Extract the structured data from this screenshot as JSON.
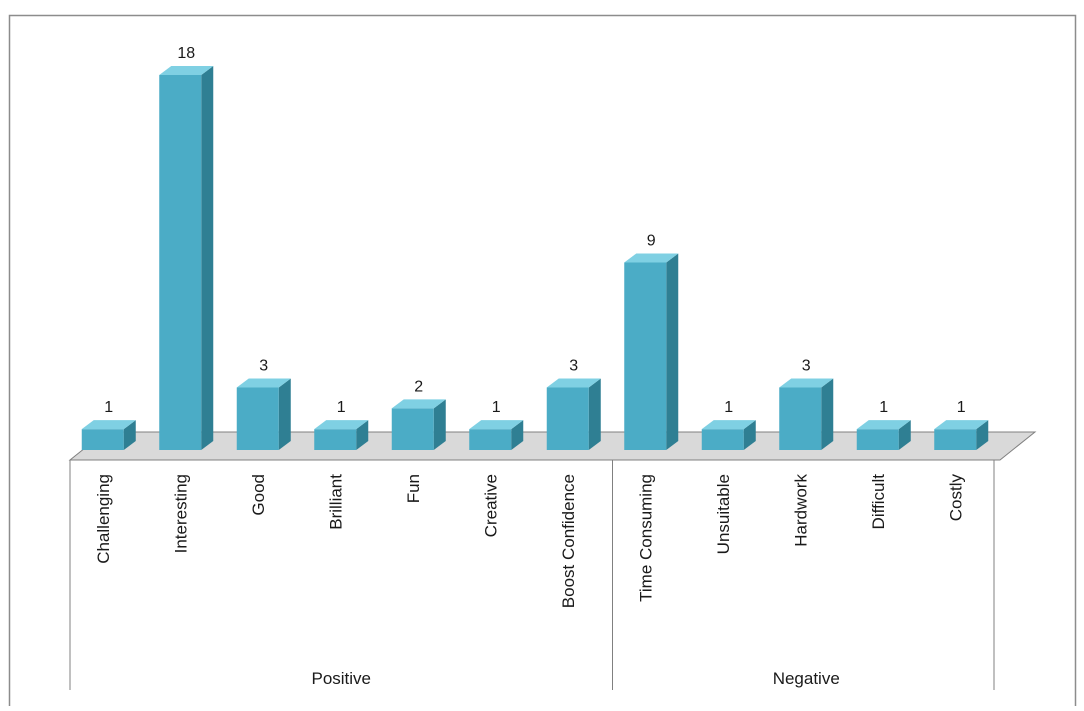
{
  "chart_data": {
    "type": "bar",
    "categories": [
      "Challenging",
      "Interesting",
      "Good",
      "Brilliant",
      "Fun",
      "Creative",
      "Boost Confidence",
      "Time Consuming",
      "Unsuitable",
      "Hardwork",
      "Difficult",
      "Costly"
    ],
    "values": [
      1,
      18,
      3,
      1,
      2,
      1,
      3,
      9,
      1,
      3,
      1,
      1
    ],
    "groups": [
      {
        "label": "Positive",
        "count": 7
      },
      {
        "label": "Negative",
        "count": 5
      }
    ],
    "data_labels": [
      "1",
      "18",
      "3",
      "1",
      "2",
      "1",
      "3",
      "9",
      "1",
      "3",
      "1",
      "1"
    ],
    "title": "",
    "xlabel": "",
    "ylabel": "",
    "ylim": [
      0,
      18
    ],
    "grid": false,
    "legend": "none",
    "style": "3d-column",
    "colors": {
      "bar_front": "#4bacc6",
      "bar_side": "#2f7f93",
      "bar_top": "#7fd0e3",
      "floor": "#d9d9d9",
      "axis": "#808080",
      "frame": "#8c8c8c"
    }
  }
}
